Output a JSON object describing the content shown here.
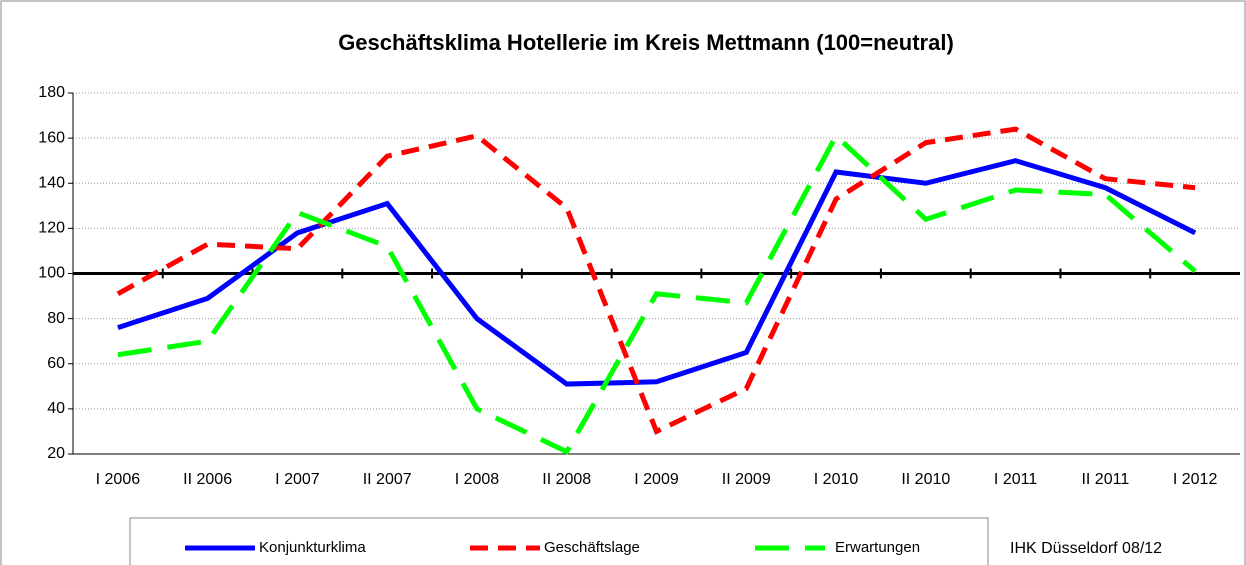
{
  "chart_data": {
    "type": "line",
    "title": "Geschäftsklima Hotellerie im Kreis Mettmann (100=neutral)",
    "categories": [
      "I 2006",
      "II 2006",
      "I 2007",
      "II 2007",
      "I 2008",
      "II 2008",
      "I 2009",
      "II 2009",
      "I 2010",
      "II 2010",
      "I 2011",
      "II 2011",
      "I 2012"
    ],
    "series": [
      {
        "name": "Konjunkturklima",
        "color": "#0000ff",
        "dash": "solid",
        "values": [
          76,
          89,
          118,
          131,
          80,
          51,
          52,
          65,
          145,
          140,
          150,
          138,
          118
        ]
      },
      {
        "name": "Geschäftslage",
        "color": "#ff0000",
        "dash": "dashed",
        "values": [
          91,
          113,
          111,
          152,
          161,
          129,
          30,
          49,
          133,
          158,
          164,
          142,
          138
        ]
      },
      {
        "name": "Erwartungen",
        "color": "#00ff00",
        "dash": "longdash",
        "values": [
          64,
          70,
          127,
          112,
          40,
          21,
          91,
          87,
          161,
          124,
          137,
          135,
          101
        ]
      }
    ],
    "ylim": [
      20,
      180
    ],
    "yticks": [
      20,
      40,
      60,
      80,
      100,
      120,
      140,
      160,
      180
    ],
    "grid": true,
    "reference_line": 100,
    "source": "IHK Düsseldorf 08/12"
  }
}
